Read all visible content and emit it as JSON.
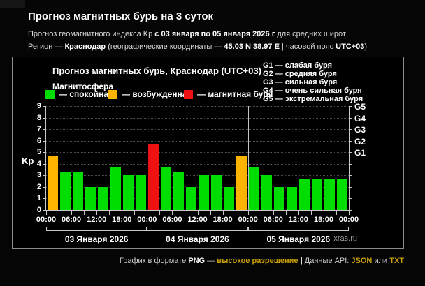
{
  "header": {
    "title": "Прогноз магнитных бурь на 3 суток",
    "line2": {
      "t1": "Прогноз геомагнитного индекса Kp ",
      "b1": "с 03 января по 05 января 2026 г",
      "t2": " для средних широт"
    },
    "line3": {
      "t1": "Регион — ",
      "b1": "Краснодар",
      "t2": " (географические координаты — ",
      "b2": "45.03 N 38.97 E",
      "t3": " | часовой пояс ",
      "b3": "UTC+03",
      "t4": ")"
    }
  },
  "chart": {
    "title": "Прогноз магнитных бурь, Краснодар (UTC+03)",
    "legend_title": "Магнитосфера",
    "legend": [
      {
        "label": "— спокойная",
        "color": "#00dd00",
        "key": "quiet"
      },
      {
        "label": "— возбужденная",
        "color": "#fcb400",
        "key": "excited"
      },
      {
        "label": "— магнитная буря",
        "color": "#ee1111",
        "key": "storm"
      }
    ],
    "g_legend": [
      "G1 — слабая буря",
      "G2 — средняя буря",
      "G3 — сильная буря",
      "G4 — очень сильная буря",
      "G5 — экстремальная буря"
    ],
    "ylabel": "Kp",
    "watermark": "xras.ru"
  },
  "chart_data": {
    "type": "bar",
    "title": "Прогноз магнитных бурь, Краснодар (UTC+03)",
    "ylabel": "Kp",
    "ylim": [
      0,
      9
    ],
    "yticks": [
      0,
      1,
      2,
      3,
      4,
      5,
      6,
      7,
      8,
      9
    ],
    "bar_interval_hours": 3,
    "hours_total": 72,
    "values": [
      4.67,
      3.33,
      3.33,
      2.0,
      2.0,
      3.67,
      3.0,
      3.0,
      5.67,
      3.67,
      3.33,
      2.0,
      3.0,
      3.0,
      2.0,
      4.67,
      3.67,
      3.0,
      2.0,
      2.0,
      2.67,
      2.67,
      2.67,
      2.67
    ],
    "colors": {
      "quiet": "#00dd00",
      "excited": "#fcb400",
      "storm": "#ee1111"
    },
    "thresholds": {
      "excited_min": 4,
      "storm_min": 5
    },
    "time_ticks": [
      "00:00",
      "06:00",
      "12:00",
      "18:00",
      "00:00",
      "06:00",
      "12:00",
      "18:00",
      "00:00",
      "06:00",
      "12:00",
      "18:00",
      "00:00"
    ],
    "days": [
      "03 Января 2026",
      "04 Января 2026",
      "05 Января 2026"
    ],
    "right_axis": [
      {
        "label": "G1",
        "kp": 5
      },
      {
        "label": "G2",
        "kp": 6
      },
      {
        "label": "G3",
        "kp": 7
      },
      {
        "label": "G4",
        "kp": 8
      },
      {
        "label": "G5",
        "kp": 9
      }
    ],
    "grid": "dotted horizontal at each integer",
    "legend_position": "top"
  },
  "footer": {
    "t1": "График в формате ",
    "b1": "PNG",
    "t2": " — ",
    "link_hires": "высокое разрешение",
    "sep": " | ",
    "t3": "Данные API: ",
    "link_json": "JSON",
    "t4": " или ",
    "link_txt": "TXT"
  }
}
